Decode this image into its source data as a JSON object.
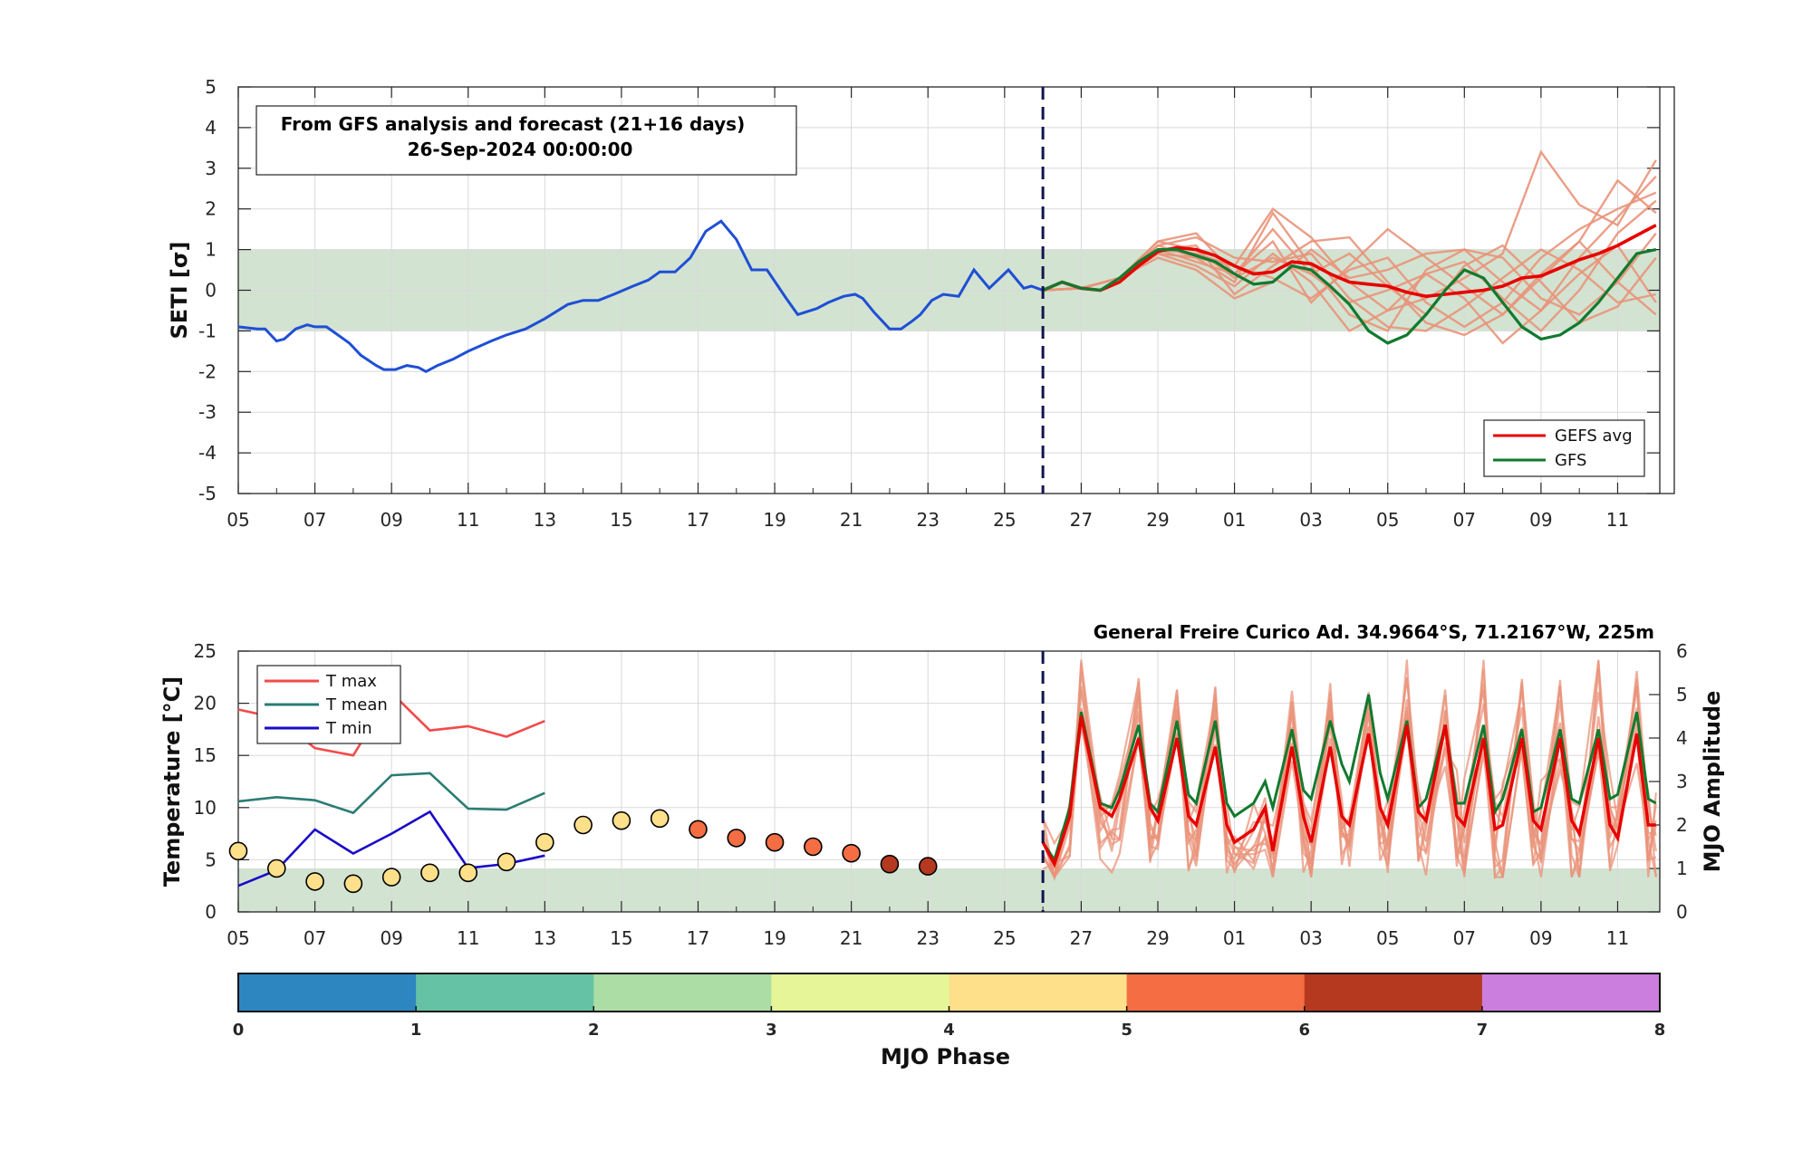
{
  "chart_data": [
    {
      "type": "line",
      "ylabel": "SETI [σ]",
      "ylim": [
        -5,
        5
      ],
      "yticks": [
        -5,
        -4,
        -3,
        -2,
        -1,
        0,
        1,
        2,
        3,
        4,
        5
      ],
      "xticks": [
        "05",
        "07",
        "09",
        "11",
        "13",
        "15",
        "17",
        "19",
        "21",
        "23",
        "25",
        "27",
        "29",
        "01",
        "03",
        "05",
        "07",
        "09",
        "11"
      ],
      "x_units": "days since 05 Sep 2024",
      "xlim": [
        0,
        37.1
      ],
      "shaded_band": [
        -1,
        1
      ],
      "forecast_start": 21,
      "grid": true,
      "info_box": [
        "From GFS analysis and forecast (21+16 days)",
        "26-Sep-2024 00:00:00"
      ],
      "legend": {
        "placement": "bottom-right",
        "entries": [
          "GEFS avg",
          "GFS"
        ]
      },
      "analysis_series": {
        "name": "analysis",
        "color": "#1f4fd6",
        "x": [
          0,
          0.5,
          0.7,
          1,
          1.2,
          1.5,
          1.8,
          2,
          2.3,
          2.6,
          2.9,
          3.2,
          3.6,
          3.8,
          4.1,
          4.4,
          4.7,
          4.9,
          5.2,
          5.6,
          6,
          6.6,
          7,
          7.5,
          8,
          8.6,
          9,
          9.4,
          9.8,
          10.3,
          10.7,
          11,
          11.4,
          11.8,
          12.2,
          12.6,
          13,
          13.4,
          13.8,
          14.3,
          14.6,
          15.1,
          15.4,
          15.8,
          16.1,
          16.3,
          16.6,
          17,
          17.3,
          17.6,
          17.8,
          18.1,
          18.4,
          18.8,
          19.2,
          19.6,
          20.1,
          20.5,
          20.7,
          21
        ],
        "y": [
          -0.9,
          -0.95,
          -0.95,
          -1.25,
          -1.2,
          -0.95,
          -0.85,
          -0.9,
          -0.9,
          -1.1,
          -1.3,
          -1.6,
          -1.85,
          -1.95,
          -1.95,
          -1.85,
          -1.9,
          -2,
          -1.85,
          -1.7,
          -1.5,
          -1.25,
          -1.1,
          -0.95,
          -0.7,
          -0.35,
          -0.25,
          -0.25,
          -0.1,
          0.1,
          0.25,
          0.45,
          0.45,
          0.8,
          1.45,
          1.7,
          1.25,
          0.5,
          0.5,
          -0.2,
          -0.6,
          -0.45,
          -0.3,
          -0.15,
          -0.1,
          -0.2,
          -0.55,
          -0.95,
          -0.95,
          -0.75,
          -0.6,
          -0.25,
          -0.1,
          -0.15,
          0.5,
          0.05,
          0.5,
          0.05,
          0.1,
          0
        ]
      },
      "series": [
        {
          "name": "GEFS avg",
          "color": "#e60000",
          "x": [
            21,
            21.5,
            22,
            22.5,
            23,
            23.5,
            24,
            24.5,
            25,
            25.5,
            26,
            26.5,
            27,
            27.5,
            28,
            28.5,
            29,
            29.5,
            30,
            30.5,
            31,
            31.5,
            32,
            32.5,
            33,
            33.5,
            34,
            34.5,
            35,
            35.5,
            36,
            36.5,
            37
          ],
          "y": [
            0,
            0.2,
            0.05,
            0,
            0.2,
            0.6,
            0.95,
            1.05,
            1.0,
            0.85,
            0.6,
            0.4,
            0.45,
            0.7,
            0.65,
            0.4,
            0.2,
            0.15,
            0.1,
            -0.05,
            -0.15,
            -0.1,
            -0.05,
            0,
            0.1,
            0.3,
            0.35,
            0.55,
            0.75,
            0.9,
            1.1,
            1.35,
            1.6
          ]
        },
        {
          "name": "GFS",
          "color": "#117a2e",
          "x": [
            21,
            21.5,
            22,
            22.5,
            23,
            23.5,
            24,
            24.5,
            25,
            25.5,
            26,
            26.5,
            27,
            27.5,
            28,
            28.5,
            29,
            29.5,
            30,
            30.5,
            31,
            31.5,
            32,
            32.5,
            33,
            33.5,
            34,
            34.5,
            35,
            35.5,
            36,
            36.5,
            37
          ],
          "y": [
            0,
            0.2,
            0.05,
            0,
            0.3,
            0.7,
            1.0,
            1.0,
            0.85,
            0.7,
            0.4,
            0.15,
            0.2,
            0.6,
            0.5,
            0.1,
            -0.35,
            -1.0,
            -1.3,
            -1.1,
            -0.6,
            0,
            0.5,
            0.3,
            -0.3,
            -0.9,
            -1.2,
            -1.1,
            -0.8,
            -0.3,
            0.3,
            0.9,
            1.0
          ]
        }
      ],
      "ensemble_members": {
        "color": "#e9937a",
        "x": [
          21,
          22,
          23,
          24,
          25,
          26,
          27,
          28,
          29,
          30,
          31,
          32,
          33,
          34,
          35,
          36,
          37
        ],
        "members": [
          [
            0,
            0.05,
            0.3,
            1.0,
            0.9,
            0.6,
            2.0,
            1.3,
            0.2,
            -0.5,
            -0.2,
            0.3,
            0.9,
            3.4,
            2.1,
            1.6,
            3.2
          ],
          [
            0,
            0.05,
            0.3,
            1.1,
            0.8,
            0.2,
            1.9,
            0.6,
            -0.6,
            -1.0,
            0.5,
            1.0,
            0.2,
            -0.5,
            0.8,
            1.8,
            2.8
          ],
          [
            0,
            0.05,
            0.3,
            1.2,
            1.4,
            0.4,
            1.2,
            -0.3,
            0.6,
            1.5,
            0.8,
            0.1,
            -0.6,
            0.3,
            1.2,
            2.7,
            1.9
          ],
          [
            0,
            0.05,
            0.3,
            1.0,
            1.1,
            -0.1,
            0.6,
            1.2,
            1.3,
            0.2,
            -0.8,
            -1.1,
            -0.6,
            0.4,
            1.2,
            0.2,
            -0.6
          ],
          [
            0,
            0.05,
            0.3,
            0.9,
            0.6,
            0.1,
            0.9,
            0.2,
            -1.0,
            -0.5,
            0.4,
            -0.2,
            -1.3,
            -0.5,
            0.4,
            1.1,
            -0.3
          ],
          [
            0,
            0.05,
            0.3,
            0.9,
            0.8,
            0.6,
            0.3,
            -0.2,
            0.5,
            0.8,
            -0.3,
            -0.9,
            -0.3,
            0.8,
            1.5,
            2.0,
            2.4
          ],
          [
            0,
            0.05,
            0.3,
            1.0,
            0.7,
            0.4,
            1.5,
            0.4,
            0.9,
            0.1,
            -0.6,
            0.6,
            1.1,
            0.2,
            -0.8,
            -0.4,
            0.8
          ],
          [
            0,
            0.05,
            0.3,
            1.1,
            1.3,
            0.8,
            0.7,
            0.9,
            -0.2,
            -0.9,
            -1.0,
            -0.4,
            0.3,
            1.0,
            0.5,
            -0.3,
            -0.1
          ],
          [
            0,
            0.05,
            0.3,
            0.8,
            0.5,
            -0.2,
            0.2,
            1.0,
            0.3,
            0.5,
            0.9,
            1.0,
            0.8,
            -0.2,
            -0.6,
            0.2,
            1.4
          ],
          [
            0,
            0.05,
            0.3,
            1.2,
            1.0,
            0.3,
            0.8,
            0.4,
            -0.3,
            0.0,
            0.4,
            0.7,
            -0.2,
            -1.0,
            0.0,
            1.4,
            2.2
          ]
        ]
      }
    },
    {
      "type": "line",
      "title": "General Freire Curico Ad. 34.9664°S, 71.2167°W, 225m",
      "ylabel": "Temperature [°C]",
      "ylim": [
        0,
        25
      ],
      "yticks": [
        0,
        5,
        10,
        15,
        20,
        25
      ],
      "y2label": "MJO Amplitude",
      "y2lim": [
        0,
        6
      ],
      "y2ticks": [
        0,
        1,
        2,
        3,
        4,
        5,
        6
      ],
      "xticks": [
        "05",
        "07",
        "09",
        "11",
        "13",
        "15",
        "17",
        "19",
        "21",
        "23",
        "25",
        "27",
        "29",
        "01",
        "03",
        "05",
        "07",
        "09",
        "11"
      ],
      "x_units": "days since 05 Sep 2024",
      "xlim": [
        0,
        37.1
      ],
      "shaded_band_y2": [
        0,
        1
      ],
      "forecast_start": 21,
      "grid": true,
      "legend": {
        "placement": "top-left",
        "entries": [
          "T max",
          "T mean",
          "T min"
        ]
      },
      "series": [
        {
          "name": "T max",
          "color": "#f24a4a",
          "x": [
            0,
            1,
            2,
            3,
            4,
            5,
            6,
            7,
            8
          ],
          "y": [
            19.4,
            18.6,
            15.7,
            15.0,
            21.0,
            17.4,
            17.8,
            16.8,
            18.3
          ]
        },
        {
          "name": "T mean",
          "color": "#2a7c74",
          "x": [
            0,
            1,
            2,
            3,
            4,
            5,
            6,
            7,
            8
          ],
          "y": [
            10.6,
            11.0,
            10.7,
            9.5,
            13.1,
            13.3,
            9.9,
            9.8,
            11.4
          ]
        },
        {
          "name": "T min",
          "color": "#1a0ac8",
          "x": [
            0,
            1,
            2,
            3,
            4,
            5,
            6,
            7,
            8
          ],
          "y": [
            2.5,
            4.0,
            7.9,
            5.6,
            7.5,
            9.6,
            4.2,
            4.6,
            5.4
          ]
        }
      ],
      "mjo_points": {
        "axis": "y2",
        "x": [
          0,
          1,
          2,
          3,
          4,
          5,
          6,
          7,
          8,
          9,
          10,
          11,
          12,
          13,
          14,
          15,
          16,
          17,
          18
        ],
        "amplitude": [
          1.4,
          1.0,
          0.7,
          0.65,
          0.8,
          0.9,
          0.9,
          1.15,
          1.6,
          2.0,
          2.1,
          2.15,
          1.9,
          1.7,
          1.6,
          1.5,
          1.35,
          1.1,
          1.05
        ],
        "phase": [
          4,
          4,
          4,
          4,
          4,
          4,
          4,
          4,
          4,
          4,
          4,
          4,
          5,
          5,
          5,
          5,
          5,
          6,
          6
        ]
      },
      "forecast_series": [
        {
          "name": "GFS",
          "color": "#117a2e",
          "x": [
            21,
            21.3,
            21.7,
            22,
            22.5,
            22.8,
            23,
            23.5,
            23.8,
            24,
            24.5,
            24.8,
            25,
            25.5,
            25.8,
            26,
            26.5,
            26.8,
            27,
            27.5,
            27.8,
            28,
            28.5,
            28.8,
            29,
            29.5,
            29.8,
            30,
            30.5,
            30.8,
            31,
            31.5,
            31.8,
            32,
            32.5,
            32.8,
            33,
            33.5,
            33.8,
            34,
            34.5,
            34.8,
            35,
            35.5,
            35.8,
            36,
            36.5,
            36.8,
            37
          ],
          "y": [
            1.6,
            1.2,
            2.4,
            4.6,
            2.5,
            2.4,
            2.8,
            4.3,
            2.5,
            2.3,
            4.4,
            2.7,
            2.5,
            4.4,
            2.5,
            2.2,
            2.5,
            3.0,
            2.4,
            4.2,
            2.8,
            2.6,
            4.4,
            3.4,
            3.0,
            5.0,
            3.2,
            2.6,
            4.4,
            2.4,
            2.6,
            4.3,
            2.5,
            2.5,
            4.3,
            2.3,
            2.6,
            4.2,
            2.3,
            2.4,
            4.2,
            2.6,
            2.5,
            4.2,
            2.6,
            2.7,
            4.6,
            2.6,
            2.5
          ]
        },
        {
          "name": "GEFS avg",
          "color": "#e60000",
          "x": [
            21,
            21.3,
            21.7,
            22,
            22.5,
            22.8,
            23,
            23.5,
            23.8,
            24,
            24.5,
            24.8,
            25,
            25.5,
            25.8,
            26,
            26.5,
            26.8,
            27,
            27.5,
            27.8,
            28,
            28.5,
            28.8,
            29,
            29.5,
            29.8,
            30,
            30.5,
            30.8,
            31,
            31.5,
            31.8,
            32,
            32.5,
            32.8,
            33,
            33.5,
            33.8,
            34,
            34.5,
            34.8,
            35,
            35.5,
            35.8,
            36,
            36.5,
            36.8,
            37
          ],
          "y": [
            1.6,
            1.1,
            2.2,
            4.5,
            2.4,
            2.2,
            2.6,
            4.0,
            2.4,
            2.1,
            4.0,
            2.2,
            2.0,
            3.8,
            2.0,
            1.6,
            1.9,
            2.4,
            1.4,
            3.8,
            2.2,
            1.6,
            3.8,
            2.2,
            2.0,
            4.1,
            2.4,
            2.0,
            4.3,
            2.3,
            2.1,
            4.3,
            2.2,
            2.0,
            4.0,
            1.9,
            2.0,
            4.0,
            2.1,
            1.9,
            4.0,
            2.1,
            1.8,
            4.0,
            2.0,
            1.7,
            4.1,
            2.0,
            2.0
          ]
        }
      ],
      "ensemble_members": {
        "color": "#e9937a",
        "count": 10,
        "x_start": 21,
        "x_end": 37,
        "range": [
          0.8,
          5.8
        ]
      }
    },
    {
      "type": "heatmap",
      "name": "colorbar",
      "xlabel": "MJO Phase",
      "ticks": [
        0,
        1,
        2,
        3,
        4,
        5,
        6,
        7,
        8
      ],
      "colors": [
        "#2e86c1",
        "#66c2a5",
        "#abdda4",
        "#e6f598",
        "#fee08b",
        "#f46d43",
        "#b5391e",
        "#cc7ede"
      ]
    }
  ]
}
